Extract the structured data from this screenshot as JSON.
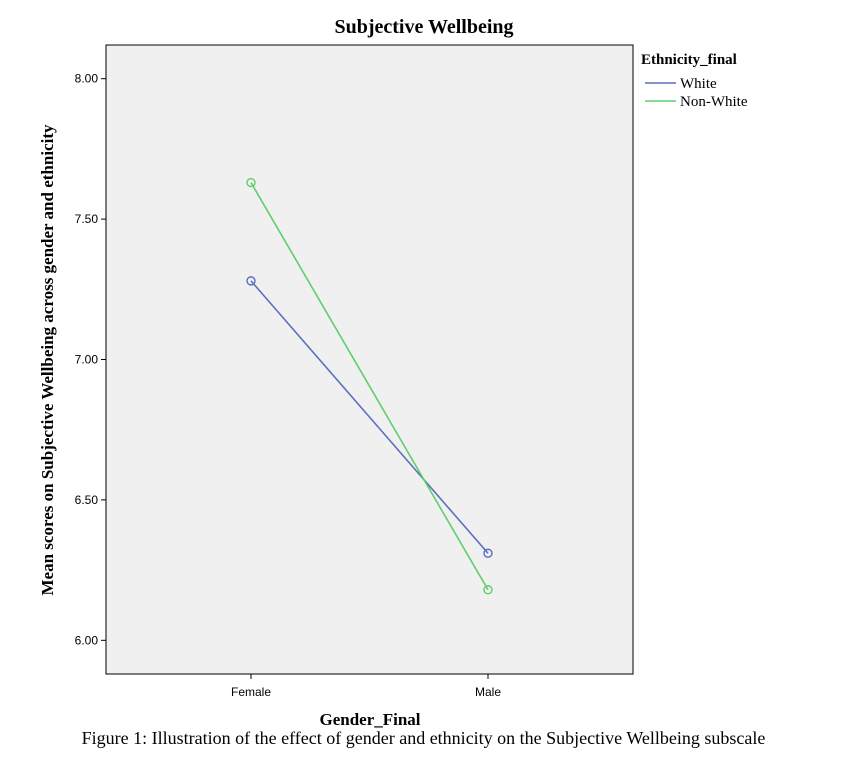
{
  "chart_data": {
    "type": "line",
    "title": "Subjective Wellbeing",
    "xlabel": "Gender_Final",
    "ylabel": "Mean scores on Subjective Wellbeing across gender and ethnicity",
    "categories": [
      "Female",
      "Male"
    ],
    "ylim": [
      5.88,
      8.12
    ],
    "yticks": [
      6.0,
      6.5,
      7.0,
      7.5,
      8.0
    ],
    "ytick_labels": [
      "6.00",
      "6.50",
      "7.00",
      "7.50",
      "8.00"
    ],
    "grid": false,
    "legend": {
      "title": "Ethnicity_final",
      "position": "right-outside-top"
    },
    "series": [
      {
        "name": "White",
        "values": [
          7.28,
          6.31
        ],
        "color": "#5a6fbf"
      },
      {
        "name": "Non-White",
        "values": [
          7.63,
          6.18
        ],
        "color": "#5fcf6b"
      }
    ]
  },
  "caption": "Figure 1: Illustration of the effect of gender and ethnicity on the Subjective Wellbeing subscale",
  "colors": {
    "plot_background": "#f0f0f0",
    "frame": "#000000"
  }
}
